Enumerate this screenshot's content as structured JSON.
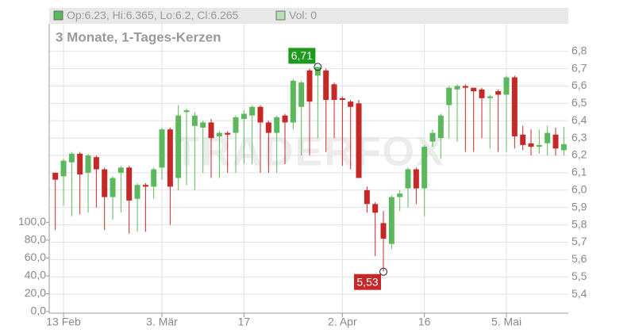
{
  "chart_data": {
    "type": "candlestick",
    "legend": [
      {
        "label": "Op:6.23, Hi:6.365, Lo:6.2, Cl:6.265",
        "color": "#5cb85c"
      },
      {
        "label": "Vol: 0",
        "color": "#b5e0b5"
      }
    ],
    "subtitle": "3 Monate, 1-Tages-Kerzen",
    "watermark": "TRADERFOX",
    "categories": [
      null,
      "13 Feb",
      null,
      null,
      null,
      null,
      null,
      null,
      null,
      null,
      null,
      null,
      null,
      "3. Mär",
      null,
      null,
      null,
      null,
      null,
      null,
      null,
      null,
      null,
      "17",
      null,
      null,
      null,
      null,
      null,
      null,
      null,
      null,
      null,
      null,
      null,
      "2. Apr",
      null,
      null,
      null,
      null,
      null,
      null,
      null,
      null,
      null,
      "16",
      null,
      null,
      null,
      null,
      null,
      null,
      null,
      null,
      null,
      "5. Mai",
      null,
      null,
      null,
      null,
      null,
      null,
      null
    ],
    "open": [
      6.1,
      6.08,
      6.16,
      6.21,
      6.1,
      6.19,
      6.12,
      5.96,
      6.1,
      6.13,
      5.95,
      6.03,
      6.02,
      6.13,
      6.35,
      6.07,
      6.45,
      6.37,
      6.36,
      6.39,
      6.31,
      6.33,
      6.33,
      6.41,
      6.43,
      6.48,
      6.39,
      6.33,
      6.43,
      6.39,
      6.48,
      6.69,
      6.66,
      6.69,
      6.61,
      6.53,
      6.51,
      6.5,
      6.0,
      5.92,
      5.81,
      5.69,
      5.96,
      6.01,
      6.12,
      6.01,
      6.28,
      6.3,
      6.49,
      6.58,
      6.6,
      6.59,
      6.58,
      6.53,
      6.57,
      6.55,
      6.65,
      6.32,
      6.27,
      6.25,
      6.27,
      6.32,
      6.23
    ],
    "high": [
      6.1,
      6.18,
      6.22,
      6.22,
      6.21,
      6.2,
      6.13,
      6.08,
      6.14,
      6.14,
      6.04,
      6.04,
      6.13,
      6.36,
      6.36,
      6.49,
      6.47,
      6.45,
      6.4,
      6.41,
      6.34,
      6.34,
      6.43,
      6.46,
      6.49,
      6.49,
      6.4,
      6.43,
      6.44,
      6.64,
      6.63,
      6.7,
      6.71,
      6.7,
      6.62,
      6.54,
      6.52,
      6.52,
      6.02,
      5.93,
      5.88,
      5.97,
      6.0,
      6.13,
      6.13,
      6.26,
      6.35,
      6.44,
      6.6,
      6.61,
      6.61,
      6.59,
      6.59,
      6.55,
      6.58,
      6.66,
      6.66,
      6.37,
      6.35,
      6.35,
      6.37,
      6.36,
      6.365
    ],
    "low": [
      5.77,
      5.91,
      5.85,
      5.86,
      5.87,
      5.9,
      5.77,
      5.83,
      5.87,
      5.75,
      5.76,
      5.76,
      5.95,
      6.06,
      5.8,
      6.0,
      6.03,
      6.0,
      6.1,
      6.07,
      6.07,
      6.1,
      6.1,
      6.15,
      6.15,
      6.1,
      6.1,
      6.1,
      6.15,
      6.35,
      6.2,
      6.2,
      6.3,
      6.22,
      6.3,
      6.14,
      6.12,
      6.07,
      5.87,
      5.62,
      5.53,
      5.66,
      5.88,
      5.9,
      5.92,
      5.85,
      6.25,
      6.18,
      6.3,
      6.28,
      6.22,
      6.22,
      6.3,
      6.24,
      6.22,
      6.22,
      6.24,
      6.23,
      6.2,
      6.21,
      6.2,
      6.2,
      6.2
    ],
    "close": [
      6.06,
      6.17,
      6.21,
      6.09,
      6.2,
      6.12,
      5.96,
      6.07,
      6.13,
      5.94,
      6.03,
      6.02,
      6.12,
      6.35,
      6.02,
      6.43,
      6.46,
      6.43,
      6.39,
      6.3,
      6.33,
      6.32,
      6.42,
      6.44,
      6.48,
      6.39,
      6.33,
      6.42,
      6.39,
      6.63,
      6.62,
      6.51,
      6.71,
      6.52,
      6.52,
      6.52,
      6.48,
      6.07,
      5.92,
      5.87,
      5.72,
      5.96,
      5.98,
      6.12,
      6.01,
      6.25,
      6.33,
      6.43,
      6.59,
      6.6,
      6.59,
      6.57,
      6.53,
      6.54,
      6.55,
      6.65,
      6.31,
      6.26,
      6.25,
      6.26,
      6.33,
      6.24,
      6.265
    ],
    "up_color": "#5cb85c",
    "down_color": "#c62828",
    "annotations": [
      {
        "text": "6,71",
        "value": 6.71,
        "kind": "high",
        "color": "#1e9a1e"
      },
      {
        "text": "5,53",
        "value": 5.53,
        "kind": "low",
        "color": "#c62828"
      }
    ],
    "ylim": [
      5.3,
      7.05
    ],
    "yticks": [
      {
        "value": 5.4,
        "label": "5,4"
      },
      {
        "value": 5.5,
        "label": "5,5"
      },
      {
        "value": 5.6,
        "label": "5,6"
      },
      {
        "value": 5.7,
        "label": "5,7"
      },
      {
        "value": 5.8,
        "label": "5,8"
      },
      {
        "value": 5.9,
        "label": "5,9"
      },
      {
        "value": 6.0,
        "label": "6,0"
      },
      {
        "value": 6.1,
        "label": "6,1"
      },
      {
        "value": 6.2,
        "label": "6,2"
      },
      {
        "value": 6.3,
        "label": "6,3"
      },
      {
        "value": 6.4,
        "label": "6,4"
      },
      {
        "value": 6.5,
        "label": "6,5"
      },
      {
        "value": 6.6,
        "label": "6,6"
      },
      {
        "value": 6.7,
        "label": "6,7"
      },
      {
        "value": 6.8,
        "label": "6,8"
      }
    ],
    "y2lim": [
      0,
      340
    ],
    "y2ticks": [
      {
        "value": 0,
        "label": "0,0"
      },
      {
        "value": 20,
        "label": "20,0"
      },
      {
        "value": 40,
        "label": "40,0"
      },
      {
        "value": 60,
        "label": "60,0"
      },
      {
        "value": 80,
        "label": "80,0"
      },
      {
        "value": 100,
        "label": "100,0"
      }
    ],
    "grid": true
  }
}
